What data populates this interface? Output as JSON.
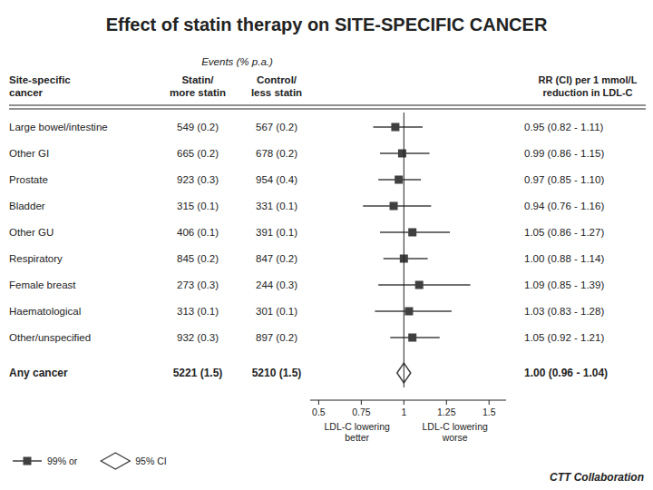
{
  "chart_data": {
    "type": "forest",
    "title": "Effect of statin therapy on SITE-SPECIFIC CANCER",
    "columns": {
      "events": "Events (% p.a.)",
      "site": "Site-specific\ncancer",
      "statin": "Statin/\nmore statin",
      "control": "Control/\nless statin",
      "rr": "RR (CI) per 1 mmol/L\nreduction in LDL-C"
    },
    "series": [
      {
        "name": "99% or",
        "marker": "square",
        "categories": [
          "Large bowel/intestine",
          "Other GI",
          "Prostate",
          "Bladder",
          "Other GU",
          "Respiratory",
          "Female breast",
          "Haematological",
          "Other/unspecified"
        ],
        "values": [
          0.95,
          0.99,
          0.97,
          0.94,
          1.05,
          1.0,
          1.09,
          1.03,
          1.05
        ],
        "ci_lo": [
          0.82,
          0.86,
          0.85,
          0.76,
          0.86,
          0.88,
          0.85,
          0.83,
          0.92
        ],
        "ci_hi": [
          1.11,
          1.15,
          1.1,
          1.16,
          1.27,
          1.14,
          1.39,
          1.28,
          1.21
        ],
        "statin": [
          "549 (0.2)",
          "665 (0.2)",
          "923 (0.3)",
          "315 (0.1)",
          "406 (0.1)",
          "845 (0.2)",
          "273 (0.3)",
          "313 (0.1)",
          "932 (0.3)"
        ],
        "control": [
          "567 (0.2)",
          "678 (0.2)",
          "954 (0.4)",
          "331 (0.1)",
          "391 (0.1)",
          "847 (0.2)",
          "244 (0.3)",
          "301 (0.1)",
          "897 (0.2)"
        ],
        "rr_text": [
          "0.95 (0.82 - 1.11)",
          "0.99 (0.86 - 1.15)",
          "0.97 (0.85 - 1.10)",
          "0.94 (0.76 - 1.16)",
          "1.05 (0.86 - 1.27)",
          "1.00 (0.88 - 1.14)",
          "1.09 (0.85 - 1.39)",
          "1.03 (0.83 - 1.28)",
          "1.05 (0.92 - 1.21)"
        ]
      },
      {
        "name": "95% CI",
        "marker": "diamond",
        "categories": [
          "Any cancer"
        ],
        "values": [
          1.0
        ],
        "ci_lo": [
          0.96
        ],
        "ci_hi": [
          1.04
        ],
        "statin": [
          "5221 (1.5)"
        ],
        "control": [
          "5210 (1.5)"
        ],
        "rr_text": [
          "1.00 (0.96 - 1.04)"
        ]
      }
    ],
    "xlim": [
      0.45,
      1.6
    ],
    "xticks": [
      0.5,
      0.75,
      1,
      1.25,
      1.5
    ],
    "ref_line": 1.0,
    "x_label_left": "LDL-C lowering\nbetter",
    "x_label_right": "LDL-C lowering\nworse",
    "color": "#404040",
    "legend": "lower-left",
    "annotations": [
      "CTT Collaboration"
    ]
  }
}
